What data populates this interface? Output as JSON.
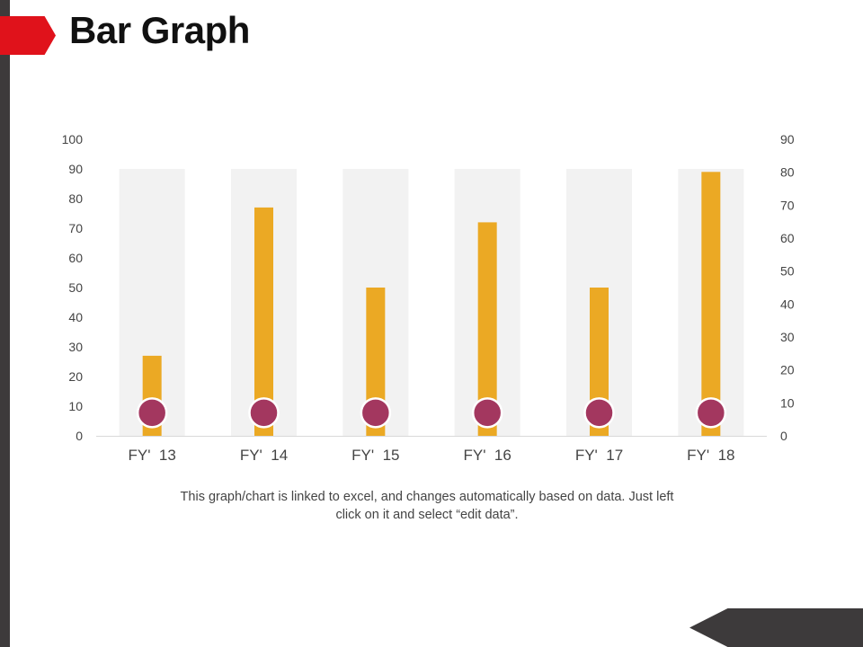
{
  "slide": {
    "title": "Bar Graph",
    "footnote": "This graph/chart is linked to excel, and changes automatically based on data. Just left click on it and select “edit data”."
  },
  "colors": {
    "accent_red": "#e0121b",
    "dark_gray": "#3d3a3b",
    "bar": "#eba924",
    "background_bar": "#f2f2f2",
    "marker": "#a3375f",
    "marker_stroke": "#ffffff",
    "axis_text": "#444444"
  },
  "chart_data": {
    "type": "bar",
    "categories": [
      "FY'  13",
      "FY'  14",
      "FY'  15",
      "FY'  16",
      "FY'  17",
      "FY'  18"
    ],
    "series": [
      {
        "type": "bar",
        "axis": "left",
        "values": [
          90,
          90,
          90,
          90,
          90,
          90
        ],
        "color": "#f2f2f2"
      },
      {
        "type": "bar",
        "axis": "left",
        "values": [
          27,
          77,
          50,
          72,
          50,
          89
        ],
        "color": "#eba924"
      },
      {
        "type": "scatter",
        "axis": "right",
        "values": [
          7,
          7,
          7,
          7,
          7,
          7
        ],
        "color": "#a3375f"
      }
    ],
    "left_axis": {
      "ylim": [
        0,
        100
      ],
      "ticks": [
        "0",
        "10",
        "20",
        "30",
        "40",
        "50",
        "60",
        "70",
        "80",
        "90",
        "100"
      ]
    },
    "right_axis": {
      "ylim": [
        0,
        90
      ],
      "ticks": [
        "0",
        "10",
        "20",
        "30",
        "40",
        "50",
        "60",
        "70",
        "80",
        "90"
      ]
    },
    "grid": false,
    "legend": "none"
  }
}
